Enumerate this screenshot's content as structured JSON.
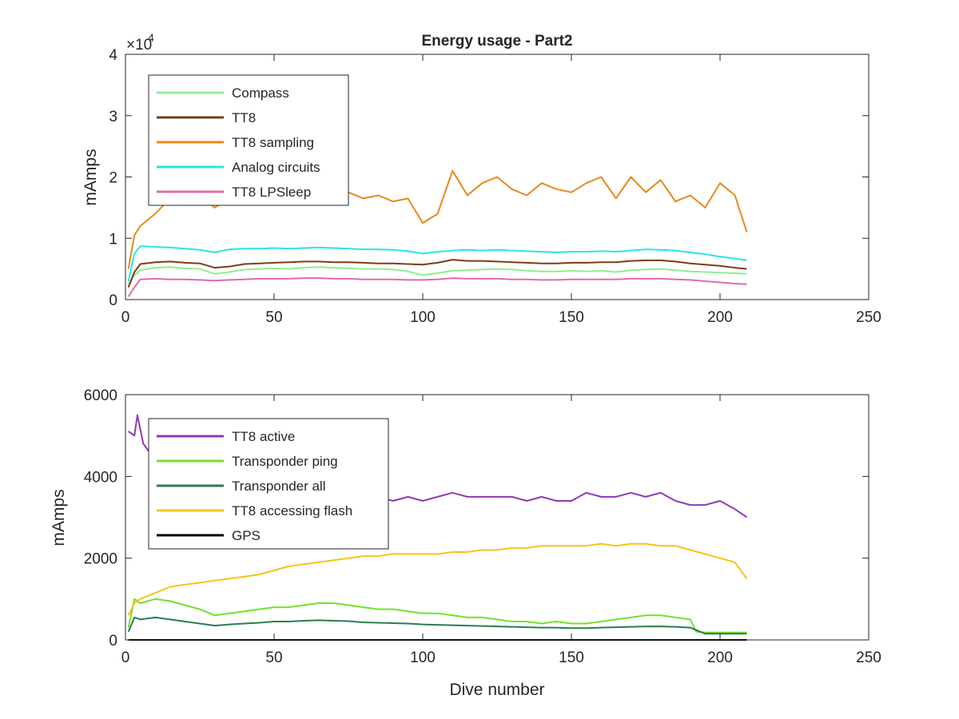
{
  "figure_title": "Energy usage - Part2",
  "chart_data": [
    {
      "type": "line",
      "title": "Energy usage - Part2",
      "xlabel": "",
      "ylabel": "mAmps",
      "xlim": [
        0,
        250
      ],
      "ylim": [
        0,
        40000
      ],
      "y_exponent_label": "×10",
      "y_exponent_power": "4",
      "xticks": [
        0,
        50,
        100,
        150,
        200,
        250
      ],
      "xtick_labels": [
        "0",
        "50",
        "100",
        "150",
        "200",
        "250"
      ],
      "yticks": [
        0,
        10000,
        20000,
        30000,
        40000
      ],
      "ytick_labels": [
        "0",
        "1",
        "2",
        "3",
        "4"
      ],
      "grid": false,
      "legend_position": "top-left",
      "series": [
        {
          "name": "Compass",
          "color": "#90ee90",
          "x": [
            1,
            3,
            5,
            10,
            15,
            20,
            25,
            30,
            35,
            40,
            45,
            50,
            55,
            60,
            65,
            70,
            75,
            80,
            85,
            90,
            95,
            100,
            105,
            110,
            115,
            120,
            125,
            130,
            135,
            140,
            145,
            150,
            155,
            160,
            165,
            170,
            175,
            180,
            185,
            190,
            195,
            200,
            205,
            209
          ],
          "values": [
            2500,
            4000,
            4800,
            5200,
            5300,
            5100,
            5000,
            4200,
            4500,
            4900,
            5000,
            5100,
            5000,
            5200,
            5300,
            5200,
            5100,
            5000,
            5000,
            4900,
            4600,
            4000,
            4300,
            4700,
            4800,
            4900,
            5000,
            4900,
            4700,
            4600,
            4600,
            4700,
            4600,
            4700,
            4500,
            4800,
            4900,
            5000,
            4800,
            4600,
            4500,
            4400,
            4300,
            4200
          ]
        },
        {
          "name": "TT8",
          "color": "#7a3e12",
          "x": [
            1,
            3,
            5,
            10,
            15,
            20,
            25,
            30,
            35,
            40,
            45,
            50,
            55,
            60,
            65,
            70,
            75,
            80,
            85,
            90,
            95,
            100,
            105,
            110,
            115,
            120,
            125,
            130,
            135,
            140,
            145,
            150,
            155,
            160,
            165,
            170,
            175,
            180,
            185,
            190,
            195,
            200,
            205,
            209
          ],
          "values": [
            2000,
            4500,
            5800,
            6100,
            6200,
            6000,
            5900,
            5200,
            5400,
            5800,
            5900,
            6000,
            6100,
            6200,
            6200,
            6100,
            6100,
            6000,
            5900,
            5900,
            5800,
            5700,
            6000,
            6500,
            6300,
            6300,
            6200,
            6100,
            6000,
            5900,
            5900,
            6000,
            6000,
            6100,
            6100,
            6300,
            6400,
            6400,
            6200,
            5900,
            5700,
            5500,
            5200,
            5000
          ]
        },
        {
          "name": "TT8 sampling",
          "color": "#e8891c",
          "x": [
            1,
            3,
            5,
            10,
            15,
            20,
            25,
            30,
            35,
            40,
            45,
            50,
            55,
            60,
            65,
            70,
            75,
            80,
            85,
            90,
            95,
            100,
            105,
            110,
            115,
            120,
            125,
            130,
            135,
            140,
            145,
            150,
            155,
            160,
            165,
            170,
            175,
            180,
            185,
            190,
            195,
            200,
            205,
            209
          ],
          "values": [
            5000,
            10500,
            12000,
            14000,
            16500,
            15500,
            17000,
            15000,
            16500,
            16000,
            17500,
            16000,
            16500,
            17500,
            16000,
            18000,
            17500,
            16500,
            17000,
            16000,
            16500,
            12500,
            14000,
            21000,
            17000,
            19000,
            20000,
            18000,
            17000,
            19000,
            18000,
            17500,
            19000,
            20000,
            16500,
            20000,
            17500,
            19500,
            16000,
            17000,
            15000,
            19000,
            17000,
            11000
          ]
        },
        {
          "name": "Analog circuits",
          "color": "#28e4e8",
          "x": [
            1,
            3,
            5,
            10,
            15,
            20,
            25,
            30,
            35,
            40,
            45,
            50,
            55,
            60,
            65,
            70,
            75,
            80,
            85,
            90,
            95,
            100,
            105,
            110,
            115,
            120,
            125,
            130,
            135,
            140,
            145,
            150,
            155,
            160,
            165,
            170,
            175,
            180,
            185,
            190,
            195,
            200,
            205,
            209
          ],
          "values": [
            3000,
            7500,
            8700,
            8600,
            8500,
            8300,
            8100,
            7700,
            8200,
            8300,
            8300,
            8400,
            8300,
            8400,
            8500,
            8400,
            8300,
            8200,
            8200,
            8100,
            7900,
            7500,
            7800,
            8000,
            8100,
            8000,
            8100,
            8000,
            7900,
            7800,
            7700,
            7800,
            7800,
            7900,
            7800,
            8000,
            8200,
            8100,
            8000,
            7700,
            7400,
            7000,
            6700,
            6400
          ]
        },
        {
          "name": "TT8 LPSleep",
          "color": "#e06aae",
          "x": [
            1,
            3,
            5,
            10,
            15,
            20,
            25,
            30,
            35,
            40,
            45,
            50,
            55,
            60,
            65,
            70,
            75,
            80,
            85,
            90,
            95,
            100,
            105,
            110,
            115,
            120,
            125,
            130,
            135,
            140,
            145,
            150,
            155,
            160,
            165,
            170,
            175,
            180,
            185,
            190,
            195,
            200,
            205,
            209
          ],
          "values": [
            500,
            2000,
            3300,
            3400,
            3300,
            3300,
            3200,
            3100,
            3200,
            3300,
            3400,
            3400,
            3400,
            3500,
            3500,
            3400,
            3400,
            3300,
            3300,
            3300,
            3200,
            3200,
            3300,
            3500,
            3400,
            3400,
            3400,
            3300,
            3300,
            3200,
            3200,
            3300,
            3300,
            3300,
            3300,
            3400,
            3400,
            3400,
            3300,
            3200,
            3000,
            2800,
            2600,
            2500
          ]
        }
      ]
    },
    {
      "type": "line",
      "title": "",
      "xlabel": "Dive number",
      "ylabel": "mAmps",
      "xlim": [
        0,
        250
      ],
      "ylim": [
        0,
        6000
      ],
      "xticks": [
        0,
        50,
        100,
        150,
        200,
        250
      ],
      "xtick_labels": [
        "0",
        "50",
        "100",
        "150",
        "200",
        "250"
      ],
      "yticks": [
        0,
        2000,
        4000,
        6000
      ],
      "ytick_labels": [
        "0",
        "2000",
        "4000",
        "6000"
      ],
      "grid": false,
      "legend_position": "top-left",
      "series": [
        {
          "name": "TT8 active",
          "color": "#8e3ab8",
          "x": [
            1,
            3,
            4,
            6,
            10,
            15,
            20,
            25,
            30,
            35,
            40,
            45,
            50,
            55,
            60,
            65,
            70,
            75,
            80,
            85,
            90,
            95,
            100,
            105,
            110,
            115,
            120,
            125,
            130,
            135,
            140,
            145,
            150,
            155,
            160,
            165,
            170,
            175,
            180,
            185,
            190,
            195,
            200,
            205,
            209
          ],
          "values": [
            5100,
            5000,
            5500,
            4800,
            4400,
            4200,
            4100,
            4000,
            3900,
            3800,
            3700,
            3700,
            3600,
            3600,
            3700,
            3600,
            3600,
            3500,
            3600,
            3500,
            3400,
            3500,
            3400,
            3500,
            3600,
            3500,
            3500,
            3500,
            3500,
            3400,
            3500,
            3400,
            3400,
            3600,
            3500,
            3500,
            3600,
            3500,
            3600,
            3400,
            3300,
            3300,
            3400,
            3200,
            3000
          ]
        },
        {
          "name": "Transponder ping",
          "color": "#74e02a",
          "x": [
            1,
            3,
            5,
            10,
            15,
            20,
            25,
            30,
            35,
            40,
            45,
            50,
            55,
            60,
            65,
            70,
            75,
            80,
            85,
            90,
            95,
            100,
            105,
            110,
            115,
            120,
            125,
            130,
            135,
            140,
            145,
            150,
            155,
            160,
            165,
            170,
            175,
            180,
            185,
            190,
            192,
            195,
            200,
            205,
            209
          ],
          "values": [
            300,
            1000,
            900,
            1000,
            950,
            850,
            750,
            600,
            650,
            700,
            750,
            800,
            800,
            850,
            900,
            900,
            850,
            800,
            750,
            750,
            700,
            650,
            650,
            600,
            550,
            550,
            500,
            450,
            450,
            400,
            450,
            400,
            400,
            450,
            500,
            550,
            600,
            600,
            550,
            500,
            200,
            180,
            180,
            180,
            180
          ]
        },
        {
          "name": "Transponder all",
          "color": "#2b7d4e",
          "x": [
            1,
            3,
            5,
            10,
            15,
            20,
            25,
            30,
            35,
            40,
            45,
            50,
            55,
            60,
            65,
            70,
            75,
            80,
            85,
            90,
            95,
            100,
            105,
            110,
            115,
            120,
            125,
            130,
            135,
            140,
            145,
            150,
            155,
            160,
            165,
            170,
            175,
            180,
            185,
            190,
            195,
            200,
            205,
            209
          ],
          "values": [
            200,
            550,
            500,
            550,
            500,
            450,
            400,
            350,
            380,
            400,
            420,
            450,
            450,
            470,
            480,
            470,
            460,
            430,
            420,
            410,
            400,
            380,
            370,
            360,
            350,
            340,
            330,
            320,
            310,
            300,
            300,
            290,
            290,
            300,
            310,
            320,
            330,
            330,
            320,
            300,
            150,
            150,
            150,
            150
          ]
        },
        {
          "name": "TT8 accessing flash",
          "color": "#f5c518",
          "x": [
            1,
            3,
            5,
            10,
            15,
            20,
            25,
            30,
            35,
            40,
            45,
            50,
            55,
            60,
            65,
            70,
            75,
            80,
            85,
            90,
            95,
            100,
            105,
            110,
            115,
            120,
            125,
            130,
            135,
            140,
            145,
            150,
            155,
            160,
            165,
            170,
            175,
            180,
            185,
            190,
            195,
            200,
            205,
            209
          ],
          "values": [
            600,
            900,
            1000,
            1150,
            1300,
            1350,
            1400,
            1450,
            1500,
            1550,
            1600,
            1700,
            1800,
            1850,
            1900,
            1950,
            2000,
            2050,
            2050,
            2100,
            2100,
            2100,
            2100,
            2150,
            2150,
            2200,
            2200,
            2250,
            2250,
            2300,
            2300,
            2300,
            2300,
            2350,
            2300,
            2350,
            2350,
            2300,
            2300,
            2200,
            2100,
            2000,
            1900,
            1500
          ]
        },
        {
          "name": "GPS",
          "color": "#000000",
          "x": [
            1,
            209
          ],
          "values": [
            0,
            0
          ]
        }
      ]
    }
  ]
}
